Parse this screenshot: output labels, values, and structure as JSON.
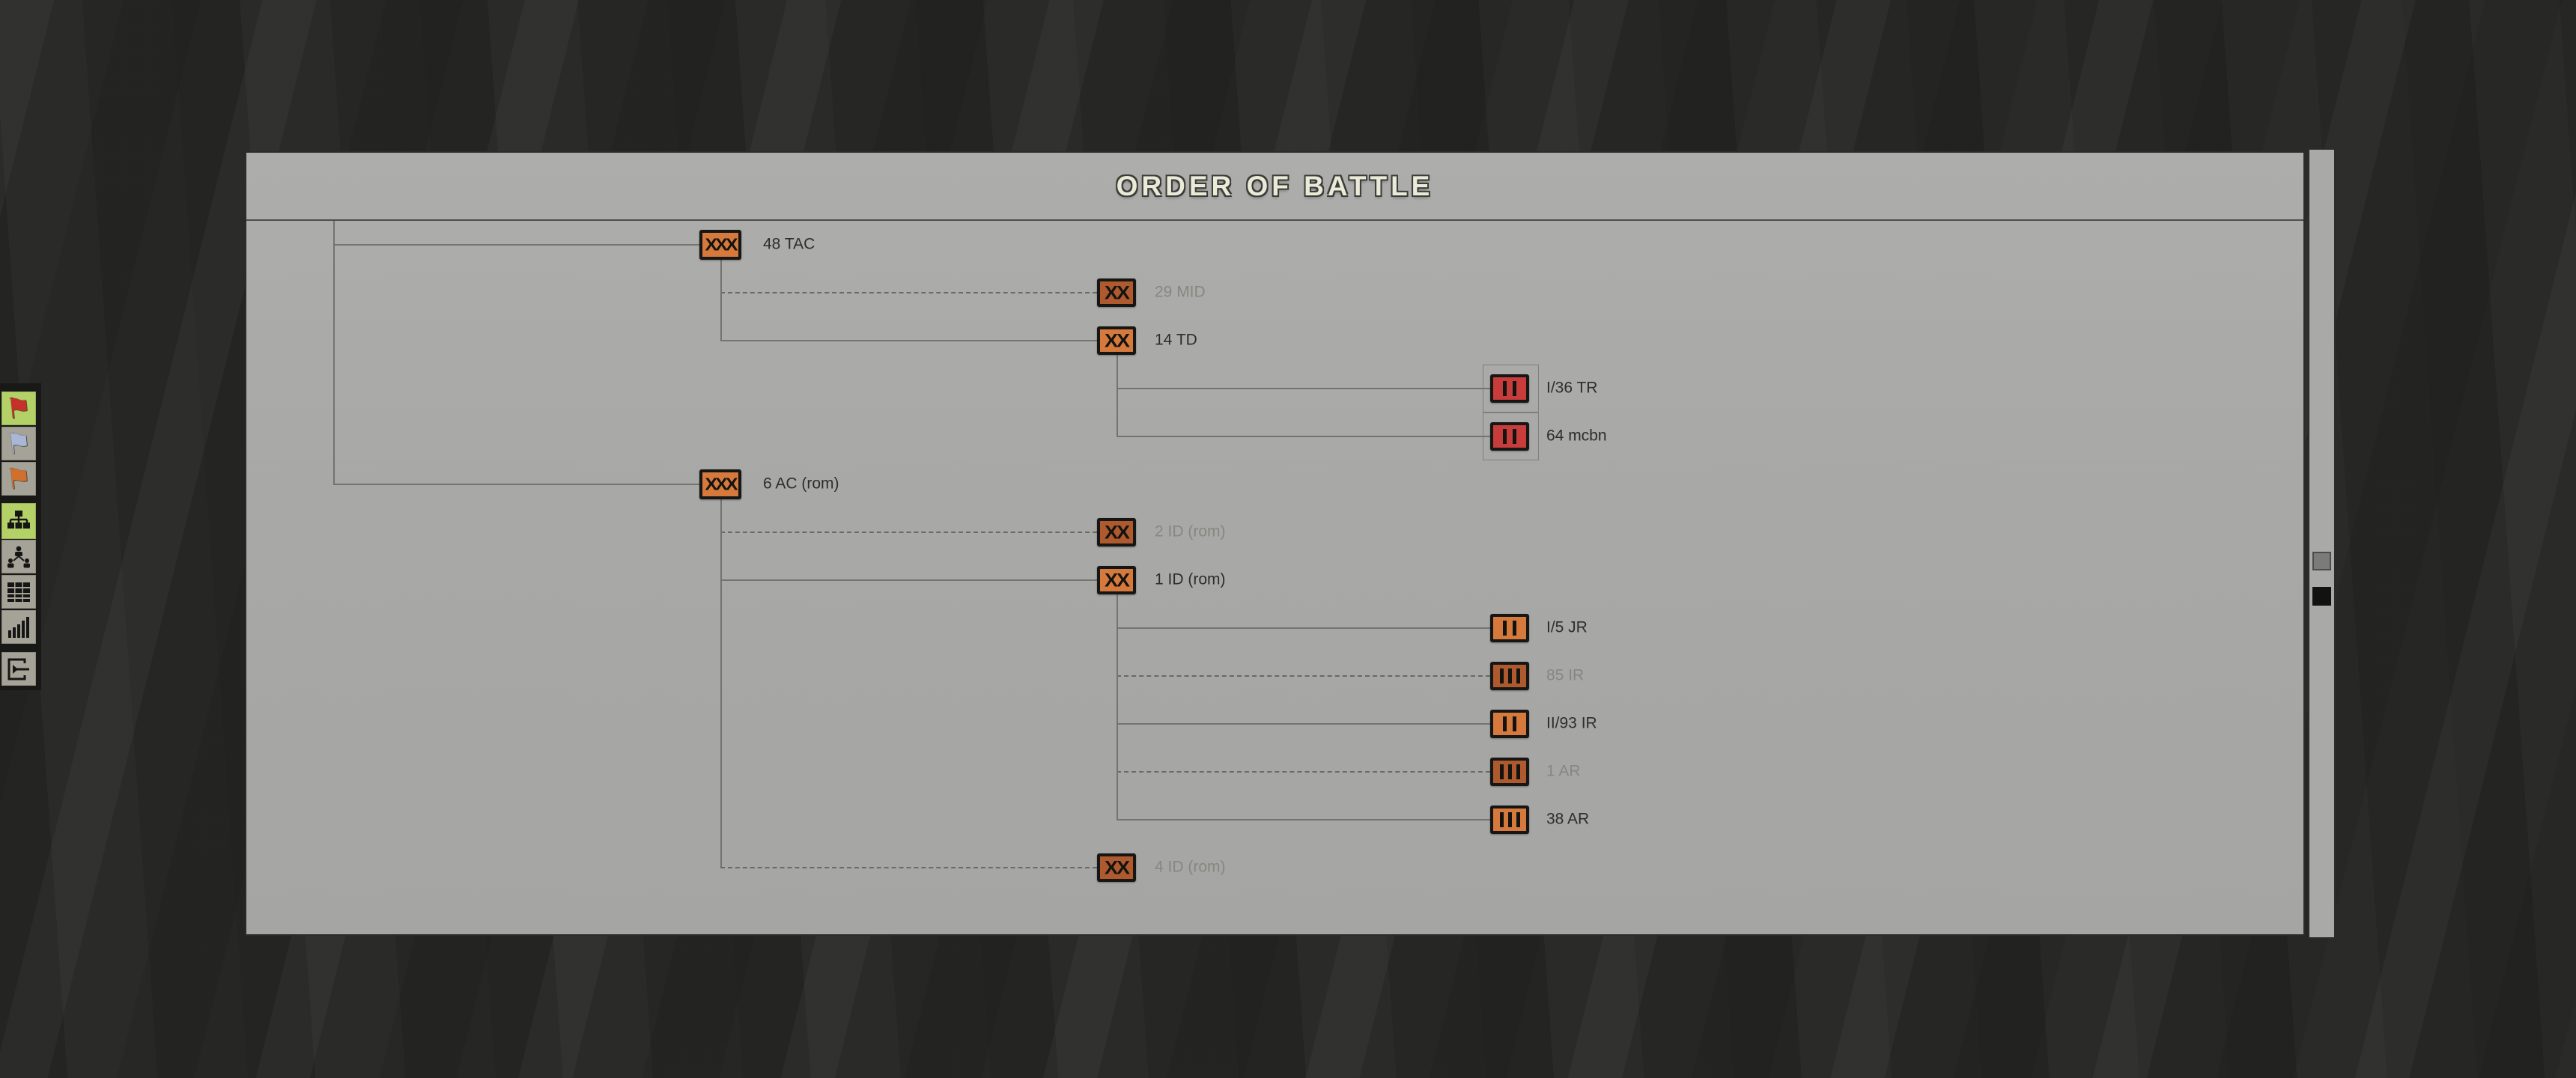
{
  "title": "ORDER OF BATTLE",
  "colors": {
    "orange": "#d6793c",
    "orange_muted": "#ae5a2e",
    "red": "#c83d3b",
    "flag_red": "#c5302b",
    "flag_blue": "#a9b6d6",
    "flag_orange": "#d06f2e",
    "selected_button_bg": "#b4d168"
  },
  "units": [
    {
      "label": "48 TAC",
      "echelon": "XXX",
      "level": 1,
      "row": 0,
      "parent_row": null,
      "detached": false,
      "color": "orange"
    },
    {
      "label": "29 MID",
      "echelon": "XX",
      "level": 2,
      "row": 1,
      "parent_row": 0,
      "detached": true,
      "color": "orange_muted"
    },
    {
      "label": "14 TD",
      "echelon": "XX",
      "level": 2,
      "row": 2,
      "parent_row": 0,
      "detached": false,
      "color": "orange"
    },
    {
      "label": "I/36 TR",
      "echelon": "II",
      "level": 3,
      "row": 3,
      "parent_row": 2,
      "detached": false,
      "color": "red",
      "boxed": true
    },
    {
      "label": "64 mcbn",
      "echelon": "II",
      "level": 3,
      "row": 4,
      "parent_row": 2,
      "detached": false,
      "color": "red",
      "boxed": true
    },
    {
      "label": "6 AC (rom)",
      "echelon": "XXX",
      "level": 1,
      "row": 5,
      "parent_row": null,
      "detached": false,
      "color": "orange"
    },
    {
      "label": "2 ID (rom)",
      "echelon": "XX",
      "level": 2,
      "row": 6,
      "parent_row": 5,
      "detached": true,
      "color": "orange_muted"
    },
    {
      "label": "1 ID (rom)",
      "echelon": "XX",
      "level": 2,
      "row": 7,
      "parent_row": 5,
      "detached": false,
      "color": "orange"
    },
    {
      "label": "I/5 JR",
      "echelon": "II",
      "level": 3,
      "row": 8,
      "parent_row": 7,
      "detached": false,
      "color": "orange"
    },
    {
      "label": "85 IR",
      "echelon": "III",
      "level": 3,
      "row": 9,
      "parent_row": 7,
      "detached": true,
      "color": "orange_muted"
    },
    {
      "label": "II/93 IR",
      "echelon": "II",
      "level": 3,
      "row": 10,
      "parent_row": 7,
      "detached": false,
      "color": "orange"
    },
    {
      "label": "1 AR",
      "echelon": "III",
      "level": 3,
      "row": 11,
      "parent_row": 7,
      "detached": true,
      "color": "orange_muted"
    },
    {
      "label": "38 AR",
      "echelon": "III",
      "level": 3,
      "row": 12,
      "parent_row": 7,
      "detached": false,
      "color": "orange"
    },
    {
      "label": "4 ID (rom)",
      "echelon": "XX",
      "level": 2,
      "row": 13,
      "parent_row": 5,
      "detached": true,
      "color": "orange_muted"
    }
  ],
  "sidebar": {
    "buttons": [
      {
        "name": "flag-red",
        "selected": true,
        "glyph": "flag",
        "color": "#c5302b"
      },
      {
        "name": "flag-blue",
        "selected": false,
        "glyph": "flag",
        "color": "#a9b6d6"
      },
      {
        "name": "flag-orange",
        "selected": false,
        "glyph": "flag",
        "color": "#d06f2e"
      },
      {
        "name": "org-chart",
        "selected": true,
        "glyph": "svg"
      },
      {
        "name": "unit-hierarchy",
        "selected": false,
        "glyph": "svg"
      },
      {
        "name": "unit-roster",
        "selected": false,
        "glyph": "svg"
      },
      {
        "name": "statistics",
        "selected": false,
        "glyph": "svg"
      },
      {
        "name": "exit",
        "selected": false,
        "glyph": "svg"
      }
    ]
  },
  "scrollbar": {
    "buttons": [
      {
        "name": "scroll-handle-gray"
      },
      {
        "name": "scroll-handle-black"
      }
    ]
  }
}
